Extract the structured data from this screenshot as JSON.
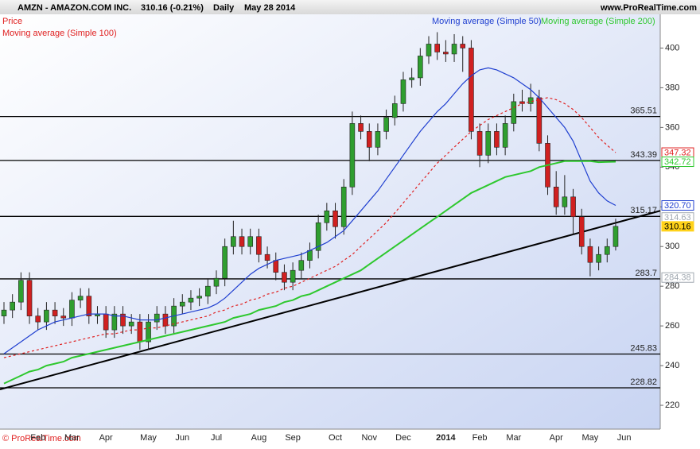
{
  "chart_data": {
    "type": "candlestick",
    "title": "AMZN - AMAZON.COM INC.",
    "quote": "310.16 (-0.21%)",
    "period": "Daily",
    "date": "May 28 2014",
    "source": "www.ProRealTime.com",
    "footer": "© ProRealTime.com",
    "price_label": "Price",
    "categories": [
      null,
      null,
      null,
      null,
      "Feb",
      null,
      null,
      null,
      "Mar",
      null,
      null,
      null,
      "Apr",
      null,
      null,
      null,
      null,
      "May",
      null,
      null,
      null,
      "Jun",
      null,
      null,
      null,
      "Jul",
      null,
      null,
      null,
      null,
      "Aug",
      null,
      null,
      null,
      "Sep",
      null,
      null,
      null,
      null,
      "Oct",
      null,
      null,
      null,
      "Nov",
      null,
      null,
      null,
      "Dec",
      null,
      null,
      null,
      null,
      "2014",
      null,
      null,
      null,
      "Feb",
      null,
      null,
      null,
      "Mar",
      null,
      null,
      null,
      null,
      "Apr",
      null,
      null,
      null,
      "May",
      null,
      null,
      null,
      "Jun"
    ],
    "open": [
      265,
      268,
      272,
      283,
      265,
      262,
      268,
      265,
      264,
      273,
      275,
      265,
      266,
      258,
      266,
      260,
      262,
      252,
      262,
      266,
      260,
      270,
      272,
      274,
      275,
      280,
      284,
      300,
      305,
      300,
      305,
      296,
      293,
      287,
      282,
      288,
      293,
      298,
      312,
      318,
      310,
      330,
      362,
      358,
      350,
      358,
      365,
      372,
      384,
      385,
      396,
      402,
      398,
      397,
      402,
      400,
      358,
      346,
      358,
      350,
      362,
      373,
      372,
      375,
      352,
      330,
      320,
      325,
      315,
      300,
      292,
      296,
      300,
      null
    ],
    "high": [
      272,
      276,
      287,
      287,
      269,
      272,
      272,
      269,
      277,
      279,
      279,
      270,
      270,
      270,
      270,
      266,
      266,
      266,
      270,
      270,
      274,
      276,
      278,
      279,
      284,
      288,
      304,
      313,
      309,
      309,
      309,
      300,
      297,
      291,
      292,
      297,
      302,
      316,
      322,
      322,
      334,
      368,
      366,
      362,
      362,
      369,
      376,
      388,
      390,
      400,
      406,
      408,
      404,
      407,
      406,
      404,
      362,
      362,
      362,
      366,
      377,
      379,
      382,
      379,
      356,
      338,
      336,
      329,
      319,
      304,
      300,
      304,
      314,
      null
    ],
    "low": [
      261,
      264,
      268,
      261,
      258,
      258,
      261,
      260,
      260,
      269,
      261,
      261,
      254,
      254,
      256,
      256,
      248,
      248,
      258,
      256,
      256,
      266,
      268,
      270,
      271,
      276,
      280,
      296,
      296,
      296,
      292,
      289,
      283,
      278,
      278,
      284,
      289,
      294,
      308,
      304,
      306,
      326,
      354,
      343,
      346,
      354,
      361,
      368,
      380,
      381,
      392,
      394,
      393,
      393,
      388,
      354,
      340,
      342,
      346,
      346,
      358,
      368,
      368,
      348,
      326,
      316,
      316,
      306,
      296,
      285,
      288,
      292,
      298,
      null
    ],
    "close": [
      268,
      272,
      283,
      265,
      262,
      268,
      265,
      264,
      273,
      275,
      265,
      266,
      258,
      266,
      260,
      262,
      252,
      262,
      266,
      260,
      270,
      272,
      274,
      275,
      280,
      284,
      300,
      305,
      300,
      305,
      296,
      293,
      287,
      282,
      288,
      293,
      298,
      312,
      318,
      310,
      330,
      362,
      358,
      350,
      358,
      365,
      372,
      384,
      385,
      396,
      402,
      398,
      397,
      402,
      400,
      358,
      346,
      358,
      350,
      362,
      373,
      372,
      375,
      352,
      330,
      320,
      325,
      315,
      300,
      292,
      296,
      300,
      310.16,
      null
    ],
    "up_color": "#2f9e2f",
    "down_color": "#d02020",
    "series": [
      {
        "name": "Moving average (Simple 50)",
        "color": "#1f3fd0",
        "dash": false,
        "values": [
          246,
          249,
          252,
          255,
          258,
          260,
          262,
          263,
          264,
          265,
          266,
          266,
          266,
          265,
          265,
          264,
          263,
          263,
          263,
          264,
          265,
          266,
          267,
          268,
          269,
          271,
          274,
          278,
          282,
          286,
          289,
          291,
          293,
          294,
          295,
          296,
          298,
          300,
          302,
          305,
          308,
          313,
          318,
          323,
          328,
          334,
          340,
          346,
          352,
          358,
          363,
          368,
          372,
          377,
          382,
          386,
          389,
          390,
          389,
          387,
          385,
          382,
          379,
          375,
          370,
          365,
          360,
          353,
          343,
          333,
          327,
          323,
          320.7,
          null
        ]
      },
      {
        "name": "Moving average (Simple 200)",
        "color": "#2ec82e",
        "dash": false,
        "values": [
          231,
          233,
          235,
          237,
          238,
          240,
          241,
          242,
          244,
          245,
          246,
          247,
          248,
          249,
          250,
          251,
          252,
          253,
          254,
          255,
          256,
          257,
          258,
          259,
          260,
          261,
          262,
          264,
          265,
          266,
          268,
          269,
          270,
          272,
          273,
          275,
          276,
          278,
          280,
          282,
          284,
          286,
          288,
          291,
          294,
          297,
          300,
          303,
          306,
          309,
          312,
          315,
          318,
          321,
          324,
          327,
          329,
          331,
          333,
          335,
          336,
          337,
          338,
          340,
          341,
          342,
          343,
          343,
          343,
          343,
          342.5,
          342.6,
          342.72,
          null
        ]
      },
      {
        "name": "Moving average (Simple 100)",
        "color": "#e02020",
        "dash": true,
        "values": [
          244,
          245,
          246,
          247,
          248,
          249,
          250,
          251,
          252,
          253,
          254,
          255,
          256,
          256,
          257,
          258,
          258,
          259,
          259,
          260,
          261,
          262,
          263,
          264,
          265,
          267,
          268,
          270,
          271,
          273,
          274,
          276,
          277,
          279,
          280,
          282,
          284,
          286,
          288,
          290,
          293,
          296,
          300,
          304,
          308,
          312,
          317,
          322,
          327,
          332,
          337,
          342,
          346,
          350,
          354,
          358,
          361,
          364,
          366,
          368,
          370,
          372,
          373,
          374,
          375,
          374,
          372,
          369,
          365,
          360,
          355,
          351,
          347.32,
          null
        ]
      }
    ],
    "levels": [
      365.51,
      343.39,
      315.17,
      283.7,
      245.83,
      228.82
    ],
    "trendline": [
      228,
      318
    ],
    "price_markers": [
      {
        "value": 347.32,
        "color": "#e02020"
      },
      {
        "value": 342.72,
        "color": "#2ec82e"
      },
      {
        "value": 320.7,
        "label": "320.70",
        "color": "#1f3fd0"
      },
      {
        "value": 314.63,
        "color": "#a0a8b0"
      },
      {
        "value": 310.16,
        "color": "#ffd21a"
      },
      {
        "value": 284.38,
        "color": "#a0a8b0"
      }
    ],
    "ylim": [
      208,
      417
    ],
    "yticks": [
      220,
      240,
      260,
      280,
      300,
      320,
      340,
      360,
      380,
      400
    ]
  }
}
